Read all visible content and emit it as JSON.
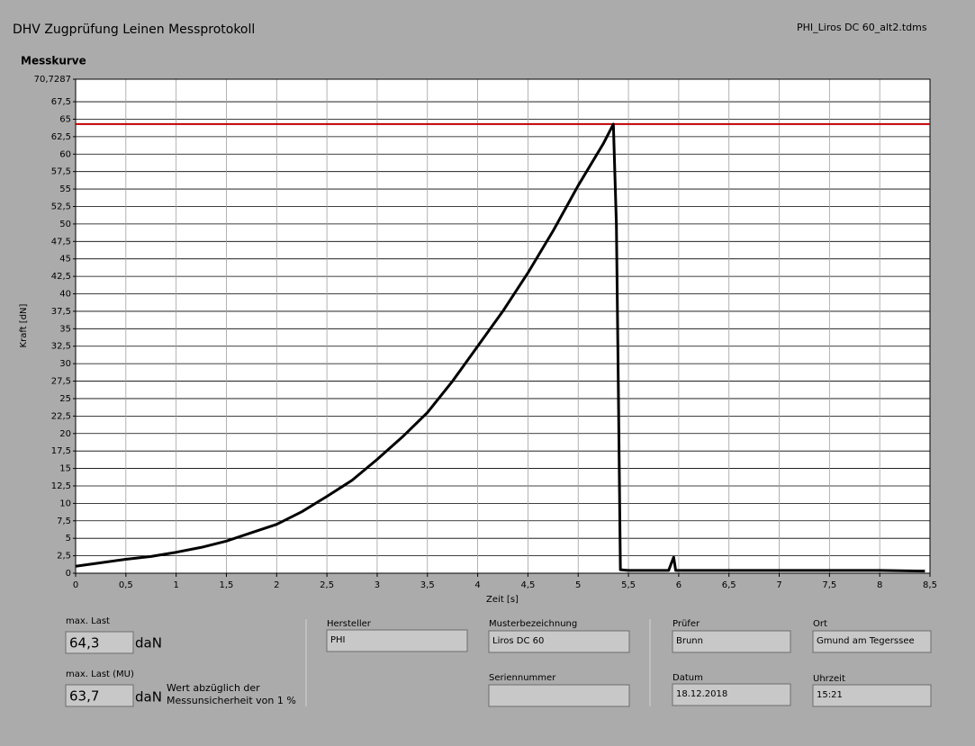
{
  "header": {
    "title": "DHV Zugprüfung Leinen Messprotokoll",
    "file": "PHI_Liros DC 60_alt2.tdms"
  },
  "chart_data": {
    "type": "line",
    "title": "Messkurve",
    "xlabel": "Zeit [s]",
    "ylabel": "Kraft [dN]",
    "x": [
      0,
      0.25,
      0.5,
      0.75,
      1,
      1.25,
      1.5,
      1.75,
      2,
      2.25,
      2.5,
      2.75,
      3,
      3.25,
      3.5,
      3.75,
      4,
      4.25,
      4.5,
      4.75,
      5,
      5.25,
      5.35,
      5.38,
      5.4,
      5.42,
      5.5,
      5.9,
      5.95,
      5.97,
      6.5,
      7,
      7.5,
      8,
      8.45
    ],
    "series": [
      {
        "name": "Kraft",
        "color": "#000000",
        "values": [
          1,
          1.5,
          2,
          2.4,
          3,
          3.7,
          4.6,
          5.8,
          7,
          8.8,
          11,
          13.3,
          16.3,
          19.5,
          23,
          27.5,
          32.5,
          37.5,
          43,
          49,
          55.5,
          61.5,
          64.3,
          50,
          26,
          0.5,
          0.4,
          0.4,
          2.3,
          0.4,
          0.4,
          0.4,
          0.4,
          0.4,
          0.3
        ]
      }
    ],
    "reference_line": {
      "value": 64.3,
      "color": "#c00000"
    },
    "xlim": [
      0,
      8.5
    ],
    "xticks": [
      0,
      {
        "value": 0.5,
        "label": "0,5"
      },
      1,
      {
        "value": 1.5,
        "label": "1,5"
      },
      2,
      {
        "value": 2.5,
        "label": "2,5"
      },
      3,
      {
        "value": 3.5,
        "label": "3,5"
      },
      4,
      {
        "value": 4.5,
        "label": "4,5"
      },
      5,
      {
        "value": 5.5,
        "label": "5,5"
      },
      6,
      {
        "value": 6.5,
        "label": "6,5"
      },
      7,
      {
        "value": 7.5,
        "label": "7,5"
      },
      8,
      {
        "value": 8.5,
        "label": "8,5"
      }
    ],
    "ylim": [
      0,
      70.7287
    ],
    "yticks": [
      0,
      {
        "value": 2.5,
        "label": "2,5"
      },
      5,
      {
        "value": 7.5,
        "label": "7,5"
      },
      10,
      {
        "value": 12.5,
        "label": "12,5"
      },
      15,
      {
        "value": 17.5,
        "label": "17,5"
      },
      20,
      {
        "value": 22.5,
        "label": "22,5"
      },
      25,
      {
        "value": 27.5,
        "label": "27,5"
      },
      30,
      {
        "value": 32.5,
        "label": "32,5"
      },
      35,
      {
        "value": 37.5,
        "label": "37,5"
      },
      40,
      {
        "value": 42.5,
        "label": "42,5"
      },
      45,
      {
        "value": 47.5,
        "label": "47,5"
      },
      50,
      {
        "value": 52.5,
        "label": "52,5"
      },
      55,
      {
        "value": 57.5,
        "label": "57,5"
      },
      60,
      {
        "value": 62.5,
        "label": "62,5"
      },
      65,
      {
        "value": 67.5,
        "label": "67,5"
      },
      {
        "value": 70.7287,
        "label": "70,7287"
      }
    ],
    "grid": true
  },
  "results": {
    "max_label": "max. Last",
    "max_value": "64,3",
    "max_unit": "daN",
    "mu_label": "max. Last (MU)",
    "mu_value": "63,7",
    "mu_unit": "daN",
    "note": [
      "Wert abzüglich der",
      "Messunsicherheit von 1 %"
    ]
  },
  "fields": {
    "hersteller_label": "Hersteller",
    "hersteller": "PHI",
    "muster_label": "Musterbezeichnung",
    "muster": "Liros DC 60",
    "serien_label": "Seriennummer",
    "pruefer_label": "Prüfer",
    "pruefer": "Brunn",
    "ort_label": "Ort",
    "ort": "Gmund am Tegerssee",
    "datum_label": "Datum",
    "datum": "18.12.2018",
    "uhrzeit_label": "Uhrzeit",
    "uhrzeit": "15:21"
  }
}
